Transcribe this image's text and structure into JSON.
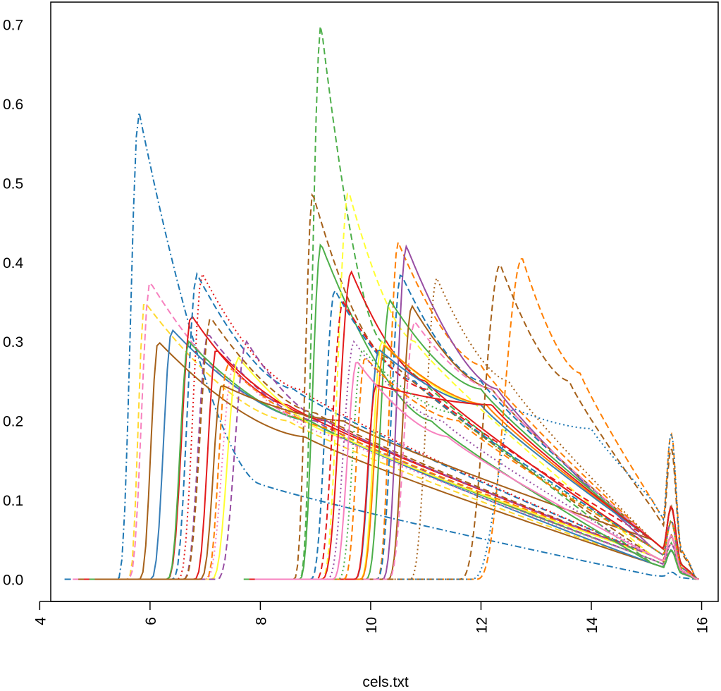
{
  "chart_data": {
    "type": "line",
    "title": "",
    "xlabel": "cels.txt",
    "ylabel": "",
    "xlim": [
      4.2,
      16.3
    ],
    "ylim": [
      -0.028,
      0.728
    ],
    "x_ticks": [
      4,
      6,
      8,
      10,
      12,
      14,
      16
    ],
    "y_ticks": [
      0.0,
      0.1,
      0.2,
      0.3,
      0.4,
      0.5,
      0.6,
      0.7
    ],
    "x_tick_labels": [
      "4",
      "6",
      "8",
      "10",
      "12",
      "14",
      "16"
    ],
    "y_tick_labels": [
      "0.0",
      "0.1",
      "0.2",
      "0.3",
      "0.4",
      "0.5",
      "0.6",
      "0.7"
    ],
    "grid": false,
    "legend": "none",
    "series": [
      {
        "color": "#1F78B4",
        "dash": "dashdot",
        "start": 4.45,
        "rise": 5.4,
        "peak_x": 5.8,
        "peak_y": 0.59,
        "mid_y": 0.12,
        "mid_x": 8.0,
        "tail_y": 0.005,
        "end": 15.9
      },
      {
        "color": "#FFD92F",
        "dash": "dashed",
        "start": 4.6,
        "rise": 5.6,
        "peak_x": 5.9,
        "peak_y": 0.35,
        "mid_y": 0.2,
        "mid_x": 8.5,
        "tail_y": 0.02,
        "end": 15.9
      },
      {
        "color": "#F781BF",
        "dash": "dashed",
        "start": 4.6,
        "rise": 5.6,
        "peak_x": 6.0,
        "peak_y": 0.375,
        "mid_y": 0.22,
        "mid_x": 8.2,
        "tail_y": 0.025,
        "end": 15.9
      },
      {
        "color": "#A6611A",
        "dash": "solid",
        "start": 4.7,
        "rise": 5.8,
        "peak_x": 6.15,
        "peak_y": 0.3,
        "mid_y": 0.18,
        "mid_x": 8.8,
        "tail_y": 0.02,
        "end": 15.9
      },
      {
        "color": "#377EB8",
        "dash": "solid",
        "start": 4.8,
        "rise": 6.0,
        "peak_x": 6.4,
        "peak_y": 0.315,
        "mid_y": 0.2,
        "mid_x": 8.9,
        "tail_y": 0.02,
        "end": 15.9
      },
      {
        "color": "#E41A1C",
        "dash": "solid",
        "start": 4.8,
        "rise": 6.3,
        "peak_x": 6.75,
        "peak_y": 0.333,
        "mid_y": 0.22,
        "mid_x": 8.5,
        "tail_y": 0.03,
        "end": 15.9
      },
      {
        "color": "#1F78B4",
        "dash": "dashed",
        "start": 4.9,
        "rise": 6.4,
        "peak_x": 6.85,
        "peak_y": 0.385,
        "mid_y": 0.24,
        "mid_x": 8.6,
        "tail_y": 0.03,
        "end": 15.9
      },
      {
        "color": "#E41A1C",
        "dash": "dotted",
        "start": 4.9,
        "rise": 6.5,
        "peak_x": 6.95,
        "peak_y": 0.385,
        "mid_y": 0.24,
        "mid_x": 8.7,
        "tail_y": 0.03,
        "end": 15.9
      },
      {
        "color": "#4DAF4A",
        "dash": "solid",
        "start": 4.9,
        "rise": 6.3,
        "peak_x": 6.7,
        "peak_y": 0.3,
        "mid_y": 0.2,
        "mid_x": 8.9,
        "tail_y": 0.025,
        "end": 15.9
      },
      {
        "color": "#984EA3",
        "dash": "dashed",
        "start": 5.0,
        "rise": 6.6,
        "peak_x": 7.05,
        "peak_y": 0.31,
        "mid_y": 0.2,
        "mid_x": 9.0,
        "tail_y": 0.025,
        "end": 15.9
      },
      {
        "color": "#A6611A",
        "dash": "dashed",
        "start": 5.0,
        "rise": 6.6,
        "peak_x": 7.1,
        "peak_y": 0.33,
        "mid_y": 0.21,
        "mid_x": 9.0,
        "tail_y": 0.03,
        "end": 15.9
      },
      {
        "color": "#E41A1C",
        "dash": "solid",
        "start": 5.0,
        "rise": 6.8,
        "peak_x": 7.2,
        "peak_y": 0.29,
        "mid_y": 0.2,
        "mid_x": 9.2,
        "tail_y": 0.03,
        "end": 15.9
      },
      {
        "color": "#FF7F00",
        "dash": "dashed",
        "start": 5.1,
        "rise": 7.0,
        "peak_x": 7.4,
        "peak_y": 0.27,
        "mid_y": 0.19,
        "mid_x": 9.3,
        "tail_y": 0.03,
        "end": 15.9
      },
      {
        "color": "#FFFF33",
        "dash": "solid",
        "start": 5.1,
        "rise": 7.1,
        "peak_x": 7.6,
        "peak_y": 0.28,
        "mid_y": 0.18,
        "mid_x": 9.5,
        "tail_y": 0.03,
        "end": 15.9
      },
      {
        "color": "#F781BF",
        "dash": "dotted",
        "start": 5.1,
        "rise": 7.0,
        "peak_x": 7.5,
        "peak_y": 0.265,
        "mid_y": 0.18,
        "mid_x": 9.4,
        "tail_y": 0.025,
        "end": 15.9
      },
      {
        "color": "#984EA3",
        "dash": "dashed",
        "start": 5.1,
        "rise": 7.2,
        "peak_x": 7.75,
        "peak_y": 0.3,
        "mid_y": 0.2,
        "mid_x": 9.2,
        "tail_y": 0.03,
        "end": 15.9
      },
      {
        "color": "#A6611A",
        "dash": "solid",
        "start": 5.0,
        "rise": 6.9,
        "peak_x": 7.3,
        "peak_y": 0.245,
        "mid_y": 0.2,
        "mid_x": 9.5,
        "tail_y": 0.05,
        "end": 15.9
      },
      {
        "color": "#4DAF4A",
        "dash": "dashed",
        "start": 7.7,
        "rise": 8.7,
        "peak_x": 9.1,
        "peak_y": 0.7,
        "mid_y": 0.3,
        "mid_x": 10.2,
        "tail_y": 0.02,
        "end": 15.95
      },
      {
        "color": "#A6611A",
        "dash": "dashed",
        "start": 7.7,
        "rise": 8.6,
        "peak_x": 8.95,
        "peak_y": 0.487,
        "mid_y": 0.28,
        "mid_x": 10.3,
        "tail_y": 0.03,
        "end": 15.95
      },
      {
        "color": "#4DAF4A",
        "dash": "solid",
        "start": 7.7,
        "rise": 8.7,
        "peak_x": 9.1,
        "peak_y": 0.423,
        "mid_y": 0.2,
        "mid_x": 11.1,
        "tail_y": 0.02,
        "end": 15.95
      },
      {
        "color": "#FFFF33",
        "dash": "dashed",
        "start": 7.8,
        "rise": 9.1,
        "peak_x": 9.6,
        "peak_y": 0.49,
        "mid_y": 0.3,
        "mid_x": 10.8,
        "tail_y": 0.03,
        "end": 15.95
      },
      {
        "color": "#E41A1C",
        "dash": "solid",
        "start": 7.8,
        "rise": 9.1,
        "peak_x": 9.65,
        "peak_y": 0.388,
        "mid_y": 0.25,
        "mid_x": 11.0,
        "tail_y": 0.04,
        "end": 15.95
      },
      {
        "color": "#1F78B4",
        "dash": "dashed",
        "start": 7.8,
        "rise": 8.9,
        "peak_x": 9.35,
        "peak_y": 0.365,
        "mid_y": 0.25,
        "mid_x": 10.8,
        "tail_y": 0.04,
        "end": 15.95
      },
      {
        "color": "#E41A1C",
        "dash": "dashed",
        "start": 7.8,
        "rise": 9.0,
        "peak_x": 9.5,
        "peak_y": 0.35,
        "mid_y": 0.24,
        "mid_x": 11.0,
        "tail_y": 0.05,
        "end": 15.95
      },
      {
        "color": "#FF7F00",
        "dash": "dashed",
        "start": 7.9,
        "rise": 10.1,
        "peak_x": 10.5,
        "peak_y": 0.425,
        "mid_y": 0.27,
        "mid_x": 12.0,
        "tail_y": 0.05,
        "end": 15.95
      },
      {
        "color": "#984EA3",
        "dash": "solid",
        "start": 7.9,
        "rise": 10.2,
        "peak_x": 10.65,
        "peak_y": 0.42,
        "mid_y": 0.24,
        "mid_x": 12.3,
        "tail_y": 0.04,
        "end": 15.95
      },
      {
        "color": "#1F78B4",
        "dash": "dashed",
        "start": 7.9,
        "rise": 10.1,
        "peak_x": 10.55,
        "peak_y": 0.385,
        "mid_y": 0.25,
        "mid_x": 12.0,
        "tail_y": 0.05,
        "end": 15.95
      },
      {
        "color": "#A6611A",
        "dash": "dotted",
        "start": 7.9,
        "rise": 10.7,
        "peak_x": 11.2,
        "peak_y": 0.38,
        "mid_y": 0.25,
        "mid_x": 12.5,
        "tail_y": 0.05,
        "end": 15.95
      },
      {
        "color": "#4DAF4A",
        "dash": "solid",
        "start": 7.9,
        "rise": 9.9,
        "peak_x": 10.35,
        "peak_y": 0.352,
        "mid_y": 0.24,
        "mid_x": 12.0,
        "tail_y": 0.05,
        "end": 15.95
      },
      {
        "color": "#A6611A",
        "dash": "solid",
        "start": 7.9,
        "rise": 10.3,
        "peak_x": 10.75,
        "peak_y": 0.345,
        "mid_y": 0.24,
        "mid_x": 12.2,
        "tail_y": 0.05,
        "end": 15.95
      },
      {
        "color": "#F781BF",
        "dash": "dashed",
        "start": 7.9,
        "rise": 10.3,
        "peak_x": 10.8,
        "peak_y": 0.325,
        "mid_y": 0.24,
        "mid_x": 12.2,
        "tail_y": 0.05,
        "end": 15.95
      },
      {
        "color": "#FFFF33",
        "dash": "solid",
        "start": 7.9,
        "rise": 9.8,
        "peak_x": 10.2,
        "peak_y": 0.3,
        "mid_y": 0.22,
        "mid_x": 12.0,
        "tail_y": 0.05,
        "end": 15.95
      },
      {
        "color": "#FF7F00",
        "dash": "solid",
        "start": 7.9,
        "rise": 9.8,
        "peak_x": 10.25,
        "peak_y": 0.295,
        "mid_y": 0.22,
        "mid_x": 12.1,
        "tail_y": 0.05,
        "end": 15.95
      },
      {
        "color": "#377EB8",
        "dash": "solid",
        "start": 7.9,
        "rise": 9.7,
        "peak_x": 10.15,
        "peak_y": 0.29,
        "mid_y": 0.22,
        "mid_x": 12.0,
        "tail_y": 0.05,
        "end": 15.95
      },
      {
        "color": "#E41A1C",
        "dash": "solid",
        "start": 7.9,
        "rise": 9.7,
        "peak_x": 10.1,
        "peak_y": 0.245,
        "mid_y": 0.22,
        "mid_x": 12.2,
        "tail_y": 0.05,
        "end": 15.95
      },
      {
        "color": "#FF7F00",
        "dash": "dashed",
        "start": 10.5,
        "rise": 11.9,
        "peak_x": 12.75,
        "peak_y": 0.405,
        "mid_y": 0.26,
        "mid_x": 13.8,
        "tail_y": 0.1,
        "end": 15.95
      },
      {
        "color": "#A6611A",
        "dash": "dashed",
        "start": 10.3,
        "rise": 11.6,
        "peak_x": 12.35,
        "peak_y": 0.397,
        "mid_y": 0.25,
        "mid_x": 13.6,
        "tail_y": 0.09,
        "end": 15.95
      },
      {
        "color": "#1F78B4",
        "dash": "dotted",
        "start": 10.5,
        "rise": 11.8,
        "peak_x": 12.6,
        "peak_y": 0.215,
        "mid_y": 0.19,
        "mid_x": 14.0,
        "tail_y": 0.1,
        "end": 15.95
      },
      {
        "color": "#FF7F00",
        "dash": "dashed",
        "start": 7.9,
        "rise": 9.5,
        "peak_x": 9.9,
        "peak_y": 0.28,
        "mid_y": 0.2,
        "mid_x": 11.6,
        "tail_y": 0.04,
        "end": 15.95
      },
      {
        "color": "#984EA3",
        "dash": "dotted",
        "start": 7.9,
        "rise": 9.2,
        "peak_x": 9.7,
        "peak_y": 0.3,
        "mid_y": 0.2,
        "mid_x": 11.3,
        "tail_y": 0.03,
        "end": 15.95
      },
      {
        "color": "#4DAF4A",
        "dash": "dotted",
        "start": 7.9,
        "rise": 9.4,
        "peak_x": 9.85,
        "peak_y": 0.29,
        "mid_y": 0.21,
        "mid_x": 11.5,
        "tail_y": 0.04,
        "end": 15.95
      },
      {
        "color": "#F781BF",
        "dash": "solid",
        "start": 7.9,
        "rise": 9.3,
        "peak_x": 9.75,
        "peak_y": 0.275,
        "mid_y": 0.18,
        "mid_x": 11.4,
        "tail_y": 0.03,
        "end": 15.95
      }
    ]
  }
}
